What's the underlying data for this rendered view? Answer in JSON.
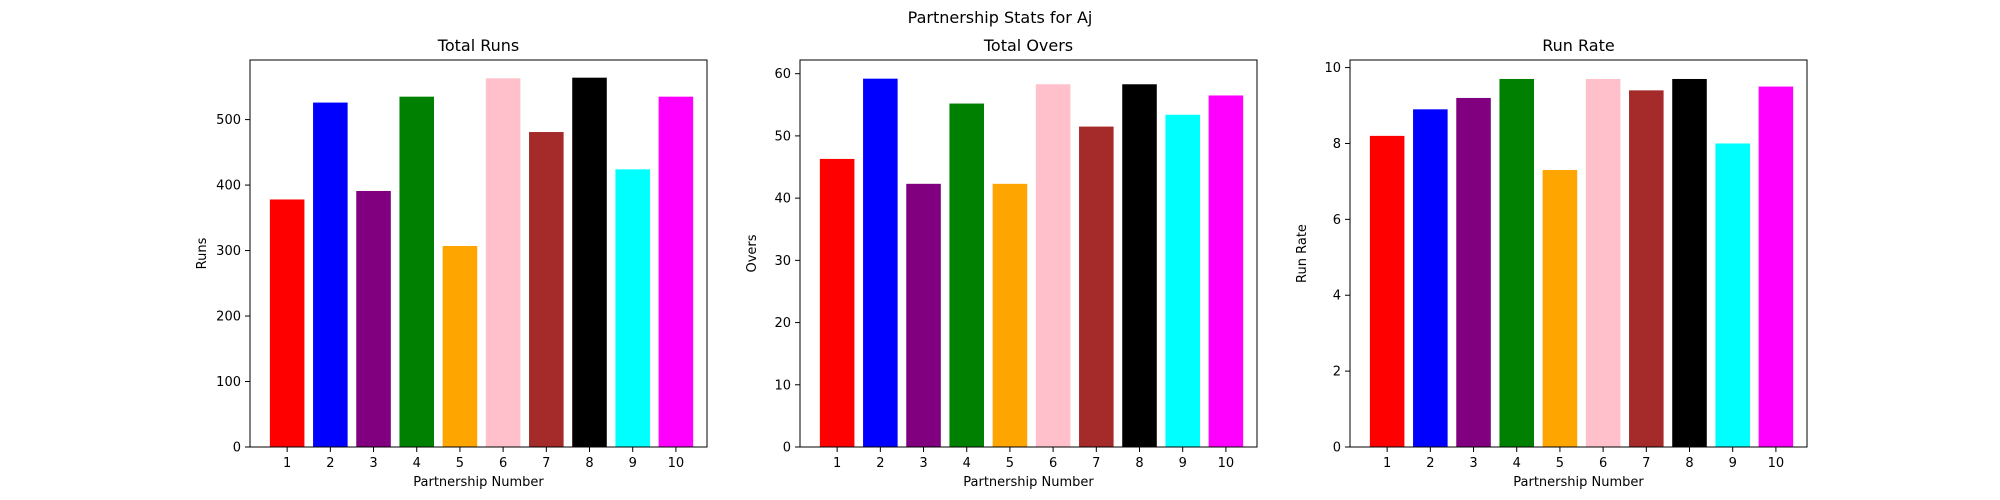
{
  "figure": {
    "title": "Partnership Stats for Aj"
  },
  "chart_data": [
    {
      "type": "bar",
      "title": "Total Runs",
      "xlabel": "Partnership Number",
      "ylabel": "Runs",
      "categories": [
        "1",
        "2",
        "3",
        "4",
        "5",
        "6",
        "7",
        "8",
        "9",
        "10"
      ],
      "values": [
        378,
        526,
        391,
        535,
        307,
        563,
        481,
        564,
        424,
        535
      ],
      "colors": [
        "#ff0000",
        "#0000ff",
        "#800080",
        "#008000",
        "#ffa500",
        "#ffc0cb",
        "#a52a2a",
        "#000000",
        "#00ffff",
        "#ff00ff"
      ],
      "ylim": [
        0,
        591
      ],
      "yticks": [
        0,
        100,
        200,
        300,
        400,
        500
      ]
    },
    {
      "type": "bar",
      "title": "Total Overs",
      "xlabel": "Partnership Number",
      "ylabel": "Overs",
      "categories": [
        "1",
        "2",
        "3",
        "4",
        "5",
        "6",
        "7",
        "8",
        "9",
        "10"
      ],
      "values": [
        46.3,
        59.2,
        42.3,
        55.2,
        42.3,
        58.3,
        51.5,
        58.3,
        53.4,
        56.5
      ],
      "colors": [
        "#ff0000",
        "#0000ff",
        "#800080",
        "#008000",
        "#ffa500",
        "#ffc0cb",
        "#a52a2a",
        "#000000",
        "#00ffff",
        "#ff00ff"
      ],
      "ylim": [
        0,
        62.2
      ],
      "yticks": [
        0,
        10,
        20,
        30,
        40,
        50,
        60
      ]
    },
    {
      "type": "bar",
      "title": "Run Rate",
      "xlabel": "Partnership Number",
      "ylabel": "Run Rate",
      "categories": [
        "1",
        "2",
        "3",
        "4",
        "5",
        "6",
        "7",
        "8",
        "9",
        "10"
      ],
      "values": [
        8.2,
        8.9,
        9.2,
        9.7,
        7.3,
        9.7,
        9.4,
        9.7,
        8.0,
        9.5
      ],
      "colors": [
        "#ff0000",
        "#0000ff",
        "#800080",
        "#008000",
        "#ffa500",
        "#ffc0cb",
        "#a52a2a",
        "#000000",
        "#00ffff",
        "#ff00ff"
      ],
      "ylim": [
        0,
        10.2
      ],
      "yticks": [
        0,
        2,
        4,
        6,
        8,
        10
      ]
    }
  ]
}
